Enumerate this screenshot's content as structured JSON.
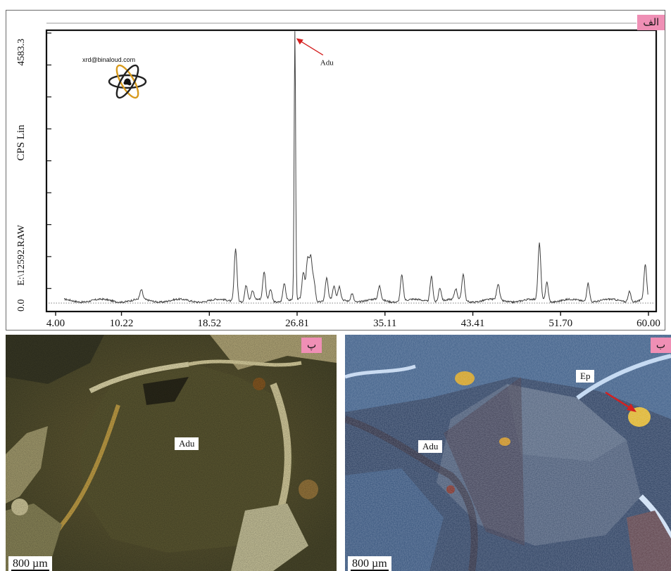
{
  "chart_data": {
    "type": "line",
    "title": "",
    "xlabel": "",
    "ylabel": "CPS Lin",
    "file_label": "E:\\12592.RAW",
    "xlim": [
      4.0,
      60.0
    ],
    "ylim": [
      0.0,
      4583.3
    ],
    "x_ticks": [
      "4.00",
      "10.22",
      "18.52",
      "26.81",
      "35.11",
      "43.41",
      "51.70",
      "60.00"
    ],
    "y_ticks": [
      "0.0",
      "4583.3"
    ],
    "peaks": [
      {
        "x": 12.1,
        "y": 160
      },
      {
        "x": 21.0,
        "y": 900
      },
      {
        "x": 22.0,
        "y": 270
      },
      {
        "x": 22.6,
        "y": 150
      },
      {
        "x": 23.7,
        "y": 480
      },
      {
        "x": 24.3,
        "y": 200
      },
      {
        "x": 25.6,
        "y": 310
      },
      {
        "x": 26.6,
        "y": 4520
      },
      {
        "x": 27.4,
        "y": 470
      },
      {
        "x": 27.8,
        "y": 680
      },
      {
        "x": 28.1,
        "y": 720
      },
      {
        "x": 28.4,
        "y": 350
      },
      {
        "x": 29.6,
        "y": 380
      },
      {
        "x": 30.3,
        "y": 230
      },
      {
        "x": 30.8,
        "y": 220
      },
      {
        "x": 32.0,
        "y": 140
      },
      {
        "x": 34.6,
        "y": 230
      },
      {
        "x": 36.7,
        "y": 440
      },
      {
        "x": 39.5,
        "y": 430
      },
      {
        "x": 40.3,
        "y": 230
      },
      {
        "x": 41.8,
        "y": 180
      },
      {
        "x": 42.5,
        "y": 450
      },
      {
        "x": 45.8,
        "y": 270
      },
      {
        "x": 49.7,
        "y": 960
      },
      {
        "x": 50.4,
        "y": 330
      },
      {
        "x": 54.3,
        "y": 320
      },
      {
        "x": 58.2,
        "y": 180
      },
      {
        "x": 59.7,
        "y": 590
      }
    ],
    "annotations": [
      {
        "text": "Adu",
        "x": 26.6
      }
    ],
    "grid": false,
    "line_color": "#404040"
  },
  "xrd_panel": {
    "tab_label": "الف",
    "email": "xrd@binaloud.com",
    "logo": "atom-logo-icon",
    "peak_label": "Adu"
  },
  "panel_left": {
    "tab_label": "پ",
    "mineral_label": "Adu",
    "scale_label": "800 µm"
  },
  "panel_right": {
    "tab_label": "ب",
    "mineral_label": "Adu",
    "arrow_label": "Ep",
    "scale_label": "800 µm"
  },
  "colors": {
    "tab_pink": "#ef8fb5",
    "arrow_red": "#d42020",
    "plane_light_olive": "#6f6538",
    "crossed_polar_blue": "#3d5d86"
  }
}
